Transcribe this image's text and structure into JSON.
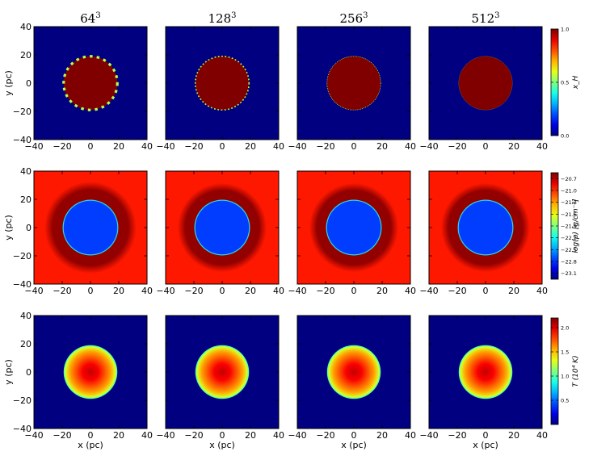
{
  "columns": [
    {
      "base": "64",
      "exp": "3"
    },
    {
      "base": "128",
      "exp": "3"
    },
    {
      "base": "256",
      "exp": "3"
    },
    {
      "base": "512",
      "exp": "3"
    }
  ],
  "chart_data": [
    {
      "type": "heatmap",
      "row": 0,
      "quantity": "ionization fraction",
      "colorbar_label": "x_H",
      "colorbar_ticks": [
        "1.0",
        "0.5",
        "0.0"
      ],
      "colorbar_tick_values": [
        1.0,
        0.5,
        0.0
      ],
      "clim": [
        0.0,
        1.0
      ],
      "ylabel": "y (pc)",
      "xlabel": "",
      "xlim": [
        -40,
        40
      ],
      "ylim": [
        -40,
        40
      ],
      "x_ticks": [
        -40,
        -20,
        0,
        20,
        40
      ],
      "y_ticks": [
        -40,
        -20,
        0,
        20,
        40
      ],
      "colormap": "jet",
      "panels": [
        {
          "resolution": 64,
          "inside_value": 1.0,
          "outside_value": 0.0,
          "radius_pc": 19
        },
        {
          "resolution": 128,
          "inside_value": 1.0,
          "outside_value": 0.0,
          "radius_pc": 19
        },
        {
          "resolution": 256,
          "inside_value": 1.0,
          "outside_value": 0.0,
          "radius_pc": 19
        },
        {
          "resolution": 512,
          "inside_value": 1.0,
          "outside_value": 0.0,
          "radius_pc": 19
        }
      ]
    },
    {
      "type": "heatmap",
      "row": 1,
      "quantity": "density",
      "colorbar_label": "log(ρ) [g/cm⁻³]",
      "colorbar_ticks": [
        "-20.7",
        "-21.0",
        "-21.3",
        "-21.6",
        "-21.9",
        "-22.2",
        "-22.5",
        "-22.8",
        "-23.1"
      ],
      "colorbar_tick_values": [
        -20.7,
        -21.0,
        -21.3,
        -21.6,
        -21.9,
        -22.2,
        -22.5,
        -22.8,
        -23.1
      ],
      "clim": [
        -23.25,
        -20.55
      ],
      "ylabel": "y (pc)",
      "xlabel": "",
      "xlim": [
        -40,
        40
      ],
      "ylim": [
        -40,
        40
      ],
      "x_ticks": [
        -40,
        -20,
        0,
        20,
        40
      ],
      "y_ticks": [
        -40,
        -20,
        0,
        20,
        40
      ],
      "colormap": "jet",
      "panels": [
        {
          "resolution": 64,
          "inner_value": -22.75,
          "shell_value": -20.6,
          "ambient_value": -20.95,
          "radius_pc": 19,
          "shell_outer_pc": 33
        },
        {
          "resolution": 128,
          "inner_value": -22.75,
          "shell_value": -20.6,
          "ambient_value": -20.95,
          "radius_pc": 19,
          "shell_outer_pc": 32
        },
        {
          "resolution": 256,
          "inner_value": -22.75,
          "shell_value": -20.6,
          "ambient_value": -20.95,
          "radius_pc": 19,
          "shell_outer_pc": 32
        },
        {
          "resolution": 512,
          "inner_value": -22.75,
          "shell_value": -20.6,
          "ambient_value": -20.95,
          "radius_pc": 19,
          "shell_outer_pc": 32
        }
      ]
    },
    {
      "type": "heatmap",
      "row": 2,
      "quantity": "temperature",
      "colorbar_label": "T (10⁴ K)",
      "colorbar_ticks": [
        "2.0",
        "1.5",
        "1.0",
        "0.5"
      ],
      "colorbar_tick_values": [
        2.0,
        1.5,
        1.0,
        0.5
      ],
      "clim": [
        0.0,
        2.2
      ],
      "ylabel": "y (pc)",
      "xlabel": "x (pc)",
      "xlim": [
        -40,
        40
      ],
      "ylim": [
        -40,
        40
      ],
      "x_ticks": [
        -40,
        -20,
        0,
        20,
        40
      ],
      "y_ticks": [
        -40,
        -20,
        0,
        20,
        40
      ],
      "colormap": "jet",
      "panels": [
        {
          "resolution": 64,
          "center_value": 2.2,
          "edge_value": 1.3,
          "outside_value": 0.0,
          "radius_pc": 19
        },
        {
          "resolution": 128,
          "center_value": 2.2,
          "edge_value": 1.3,
          "outside_value": 0.0,
          "radius_pc": 19
        },
        {
          "resolution": 256,
          "center_value": 2.2,
          "edge_value": 1.3,
          "outside_value": 0.0,
          "radius_pc": 19
        },
        {
          "resolution": 512,
          "center_value": 2.2,
          "edge_value": 1.3,
          "outside_value": 0.0,
          "radius_pc": 19
        }
      ]
    }
  ]
}
